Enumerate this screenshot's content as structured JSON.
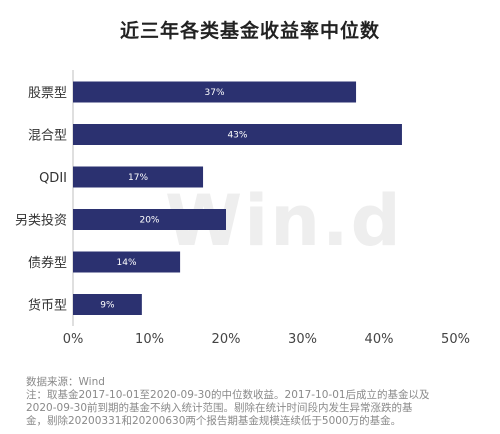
{
  "watermark": "Win.d",
  "chart_data": {
    "type": "bar",
    "orientation": "horizontal",
    "title": "近三年各类基金收益率中位数",
    "categories": [
      "股票型",
      "混合型",
      "QDII",
      "另类投资",
      "债券型",
      "货币型"
    ],
    "values": [
      37,
      43,
      17,
      20,
      14,
      9
    ],
    "value_labels": [
      "37%",
      "43%",
      "17%",
      "20%",
      "14%",
      "9%"
    ],
    "xlim": [
      0,
      50
    ],
    "xticks": [
      "0%",
      "10%",
      "20%",
      "30%",
      "40%",
      "50%"
    ],
    "xlabel": "",
    "ylabel": "",
    "grid": false,
    "bar_color": "#2b3170"
  },
  "notes": {
    "source": "数据来源：Wind",
    "line1": "注：取基金2017-10-01至2020-09-30的中位数收益。2017-10-01后成立的基金以及",
    "line2": "2020-09-30前到期的基金不纳入统计范围。剔除在统计时间段内发生异常涨跌的基",
    "line3": "金，剔除20200331和20200630两个报告期基金规模连续低于5000万的基金。"
  }
}
